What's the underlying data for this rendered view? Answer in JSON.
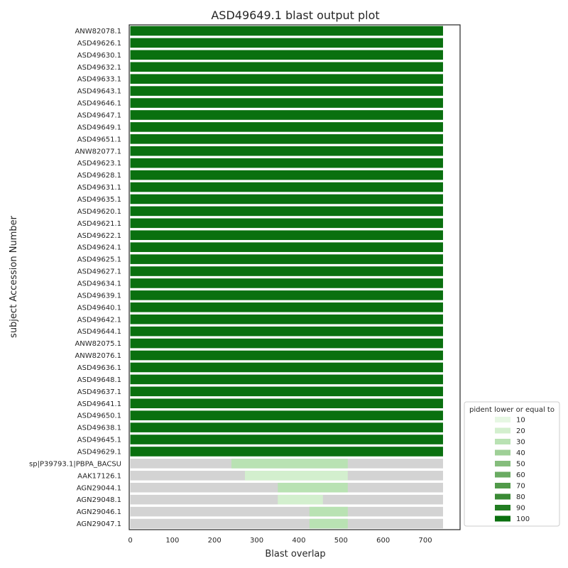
{
  "chart_data": {
    "type": "bar",
    "orientation": "horizontal",
    "title": "ASD49649.1 blast output plot",
    "xlabel": "Blast overlap",
    "ylabel": "subject Accession Number",
    "xlim": [
      0,
      785
    ],
    "xticks": [
      0,
      100,
      200,
      300,
      400,
      500,
      600,
      700
    ],
    "grid": false,
    "background_color": "#d3d3d3",
    "categories": [
      "ANW82078.1",
      "ASD49626.1",
      "ASD49630.1",
      "ASD49632.1",
      "ASD49633.1",
      "ASD49643.1",
      "ASD49646.1",
      "ASD49647.1",
      "ASD49649.1",
      "ASD49651.1",
      "ANW82077.1",
      "ASD49623.1",
      "ASD49628.1",
      "ASD49631.1",
      "ASD49635.1",
      "ASD49620.1",
      "ASD49621.1",
      "ASD49622.1",
      "ASD49624.1",
      "ASD49625.1",
      "ASD49627.1",
      "ASD49634.1",
      "ASD49639.1",
      "ASD49640.1",
      "ASD49642.1",
      "ASD49644.1",
      "ANW82075.1",
      "ANW82076.1",
      "ASD49636.1",
      "ASD49648.1",
      "ASD49637.1",
      "ASD49641.1",
      "ASD49650.1",
      "ASD49638.1",
      "ASD49645.1",
      "ASD49629.1",
      "sp|P39793.1|PBPA_BACSU",
      "AAK17126.1",
      "AGN29044.1",
      "AGN29048.1",
      "AGN29046.1",
      "AGN29047.1"
    ],
    "subject_length": [
      742,
      742,
      742,
      742,
      742,
      742,
      742,
      742,
      742,
      742,
      742,
      742,
      742,
      742,
      742,
      742,
      742,
      742,
      742,
      742,
      742,
      742,
      742,
      742,
      742,
      742,
      742,
      742,
      742,
      742,
      742,
      742,
      742,
      742,
      742,
      742,
      742,
      742,
      742,
      742,
      742,
      742
    ],
    "alignment_start": [
      0,
      0,
      0,
      0,
      0,
      0,
      0,
      0,
      0,
      0,
      0,
      0,
      0,
      0,
      0,
      0,
      0,
      0,
      0,
      0,
      0,
      0,
      0,
      0,
      0,
      0,
      0,
      0,
      0,
      0,
      0,
      0,
      0,
      0,
      0,
      0,
      240,
      272,
      350,
      350,
      425,
      425
    ],
    "alignment_end": [
      742,
      742,
      742,
      742,
      742,
      742,
      742,
      742,
      742,
      742,
      742,
      742,
      742,
      742,
      742,
      742,
      742,
      742,
      742,
      742,
      742,
      742,
      742,
      742,
      742,
      742,
      742,
      742,
      742,
      742,
      742,
      742,
      742,
      742,
      742,
      742,
      516,
      516,
      516,
      457,
      516,
      516
    ],
    "pident_bin": [
      100,
      100,
      100,
      100,
      100,
      100,
      100,
      100,
      100,
      100,
      100,
      100,
      100,
      100,
      100,
      100,
      100,
      100,
      100,
      100,
      100,
      100,
      100,
      100,
      100,
      100,
      100,
      100,
      100,
      100,
      100,
      100,
      100,
      100,
      100,
      100,
      30,
      20,
      30,
      20,
      30,
      30
    ],
    "legend": {
      "title": "pident lower or equal to",
      "placement": "lower-right-outside",
      "entries": [
        {
          "label": "10",
          "color": "#e6f7e3"
        },
        {
          "label": "20",
          "color": "#d3efce"
        },
        {
          "label": "30",
          "color": "#b9e2b3"
        },
        {
          "label": "40",
          "color": "#9fd097"
        },
        {
          "label": "50",
          "color": "#85bd7c"
        },
        {
          "label": "60",
          "color": "#6aab62"
        },
        {
          "label": "70",
          "color": "#519a4a"
        },
        {
          "label": "80",
          "color": "#3a8a35"
        },
        {
          "label": "90",
          "color": "#227d22"
        },
        {
          "label": "100",
          "color": "#0a700f"
        }
      ]
    }
  }
}
